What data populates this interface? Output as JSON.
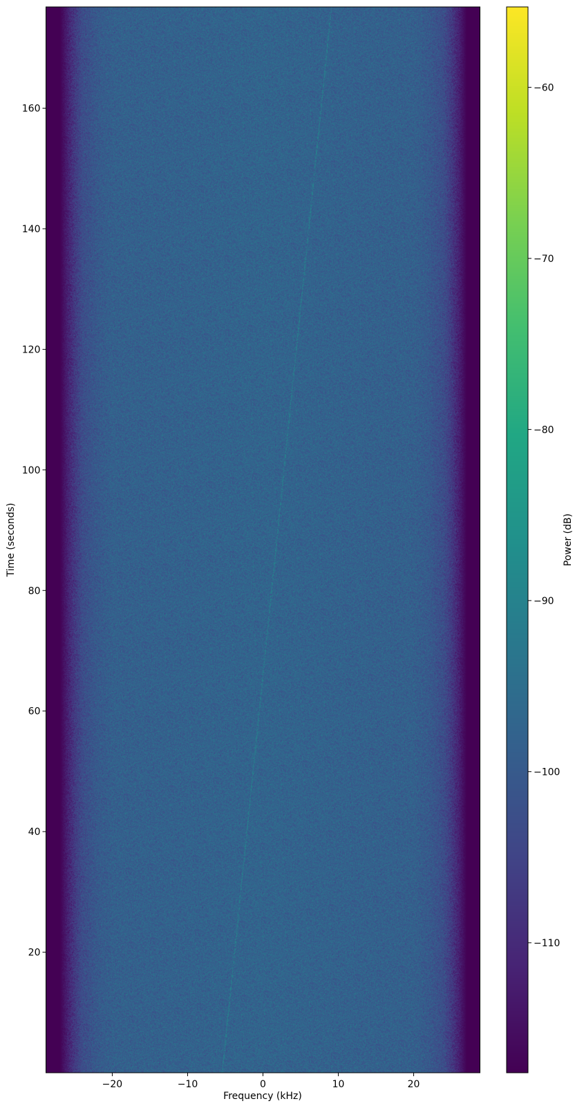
{
  "chart_data": {
    "type": "heatmap",
    "title": "",
    "xlabel": "Frequency (kHz)",
    "ylabel": "Time (seconds)",
    "xlim": [
      -28.8,
      28.8
    ],
    "ylim": [
      0,
      176.8
    ],
    "xticks": [
      -20,
      -10,
      0,
      10,
      20
    ],
    "xtick_labels": [
      "−20",
      "−10",
      "0",
      "10",
      "20"
    ],
    "yticks": [
      20,
      40,
      60,
      80,
      100,
      120,
      140,
      160
    ],
    "ytick_labels": [
      "20",
      "40",
      "60",
      "80",
      "100",
      "120",
      "140",
      "160"
    ],
    "colormap": "viridis",
    "colorbar": {
      "label": "Power (dB)",
      "range": [
        -117.6,
        -55.3
      ],
      "ticks": [
        -60,
        -70,
        -80,
        -90,
        -100,
        -110
      ],
      "tick_labels": [
        "−60",
        "−70",
        "−80",
        "−90",
        "−100",
        "−110"
      ]
    },
    "mean_power_profile": {
      "frequency_khz": [
        -28.8,
        -27,
        -26,
        -25,
        -24,
        -22,
        -20,
        0,
        20,
        22,
        24,
        25,
        26,
        27,
        28.8
      ],
      "power_db": [
        -117.6,
        -117.6,
        -112,
        -107,
        -103,
        -100,
        -98.5,
        -97.5,
        -98.5,
        -100,
        -103,
        -107,
        -112,
        -117.6,
        -117.6
      ]
    },
    "faint_trace": {
      "start": {
        "frequency_khz": -5.5,
        "time_s": 0
      },
      "end": {
        "frequency_khz": 9,
        "time_s": 176.8
      },
      "power_db": -92
    },
    "grid": false
  }
}
